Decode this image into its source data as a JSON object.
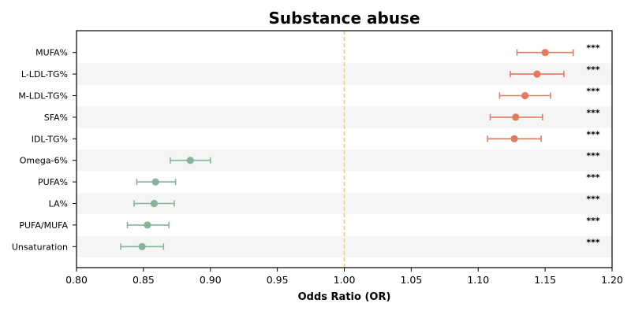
{
  "chart_data": {
    "type": "scatter",
    "title": "Substance abuse",
    "xlabel": "Odds Ratio (OR)",
    "ylabel": "",
    "xlim": [
      0.8,
      1.2
    ],
    "xticks": [
      0.8,
      0.85,
      0.9,
      0.95,
      1.0,
      1.05,
      1.1,
      1.15,
      1.2
    ],
    "xtick_labels": [
      "0.80",
      "0.85",
      "0.90",
      "0.95",
      "1.00",
      "1.05",
      "1.10",
      "1.15",
      "1.20"
    ],
    "reference_line": 1.0,
    "grid": false,
    "colors": {
      "increased_risk": "#e07b62",
      "decreased_risk": "#84b59a",
      "reference_line": "#f0c987",
      "row_band": "#f5f5f5"
    },
    "points": [
      {
        "label": "MUFA%",
        "or": 1.15,
        "ci_low": 1.129,
        "ci_high": 1.171,
        "significance": "***"
      },
      {
        "label": "L-LDL-TG%",
        "or": 1.144,
        "ci_low": 1.124,
        "ci_high": 1.164,
        "significance": "***"
      },
      {
        "label": "M-LDL-TG%",
        "or": 1.135,
        "ci_low": 1.116,
        "ci_high": 1.154,
        "significance": "***"
      },
      {
        "label": "SFA%",
        "or": 1.128,
        "ci_low": 1.109,
        "ci_high": 1.148,
        "significance": "***"
      },
      {
        "label": "IDL-TG%",
        "or": 1.127,
        "ci_low": 1.107,
        "ci_high": 1.147,
        "significance": "***"
      },
      {
        "label": "Omega-6%",
        "or": 0.885,
        "ci_low": 0.87,
        "ci_high": 0.9,
        "significance": "***"
      },
      {
        "label": "PUFA%",
        "or": 0.859,
        "ci_low": 0.845,
        "ci_high": 0.874,
        "significance": "***"
      },
      {
        "label": "LA%",
        "or": 0.858,
        "ci_low": 0.843,
        "ci_high": 0.873,
        "significance": "***"
      },
      {
        "label": "PUFA/MUFA",
        "or": 0.853,
        "ci_low": 0.838,
        "ci_high": 0.869,
        "significance": "***"
      },
      {
        "label": "Unsaturation",
        "or": 0.849,
        "ci_low": 0.833,
        "ci_high": 0.865,
        "significance": "***"
      }
    ]
  }
}
